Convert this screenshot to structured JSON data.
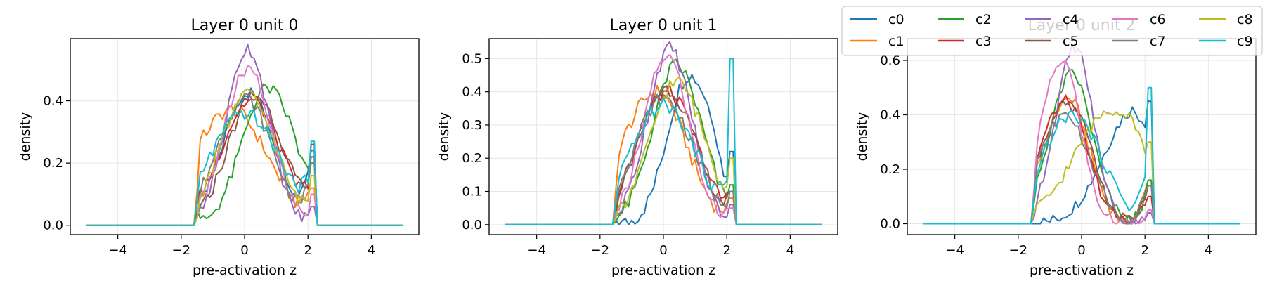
{
  "chart_data": [
    {
      "type": "line",
      "title": "Layer 0 unit 0",
      "xlabel": "pre-activation z",
      "ylabel": "density",
      "xlim": [
        -5.5,
        5.5
      ],
      "ylim": [
        -0.03,
        0.6
      ],
      "xticks": [
        -4,
        -2,
        0,
        2,
        4
      ],
      "yticks": [
        0.0,
        0.2,
        0.4
      ],
      "ytick_labels": [
        "0.0",
        "0.2",
        "0.4"
      ],
      "grid": true,
      "series": [
        {
          "name": "c0",
          "peak": 0.43,
          "x_peak": 0.1,
          "width": 1.05,
          "left": 0.08,
          "right": 0.22,
          "spike": 0.24,
          "skew": 0.1
        },
        {
          "name": "c1",
          "peak": 0.37,
          "x_peak": -0.4,
          "width": 1.5,
          "left": 0.24,
          "right": 0.12,
          "spike": 0.12,
          "skew": -0.1
        },
        {
          "name": "c2",
          "peak": 0.44,
          "x_peak": 0.7,
          "width": 1.1,
          "left": 0.12,
          "right": 0.18,
          "spike": 0.2,
          "skew": 0.2
        },
        {
          "name": "c3",
          "peak": 0.4,
          "x_peak": 0.2,
          "width": 1.2,
          "left": 0.2,
          "right": 0.16,
          "spike": 0.26,
          "skew": 0.0
        },
        {
          "name": "c4",
          "peak": 0.57,
          "x_peak": 0.1,
          "width": 0.85,
          "left": 0.06,
          "right": 0.03,
          "spike": 0.06,
          "skew": 0.0
        },
        {
          "name": "c5",
          "peak": 0.42,
          "x_peak": 0.3,
          "width": 1.1,
          "left": 0.15,
          "right": 0.14,
          "spike": 0.22,
          "skew": 0.1
        },
        {
          "name": "c6",
          "peak": 0.5,
          "x_peak": 0.1,
          "width": 0.95,
          "left": 0.09,
          "right": 0.05,
          "spike": 0.1,
          "skew": 0.0
        },
        {
          "name": "c7",
          "peak": 0.41,
          "x_peak": 0.0,
          "width": 1.1,
          "left": 0.16,
          "right": 0.15,
          "spike": 0.2,
          "skew": 0.0
        },
        {
          "name": "c8",
          "peak": 0.42,
          "x_peak": 0.1,
          "width": 1.1,
          "left": 0.12,
          "right": 0.1,
          "spike": 0.16,
          "skew": 0.0
        },
        {
          "name": "c9",
          "peak": 0.36,
          "x_peak": 0.0,
          "width": 1.4,
          "left": 0.2,
          "right": 0.18,
          "spike": 0.27,
          "skew": 0.0
        }
      ]
    },
    {
      "type": "line",
      "title": "Layer 0 unit 1",
      "xlabel": "pre-activation z",
      "ylabel": "density",
      "xlim": [
        -5.5,
        5.5
      ],
      "ylim": [
        -0.03,
        0.56
      ],
      "xticks": [
        -4,
        -2,
        0,
        2,
        4
      ],
      "yticks": [
        0.0,
        0.1,
        0.2,
        0.3,
        0.4,
        0.5
      ],
      "ytick_labels": [
        "0.0",
        "0.1",
        "0.2",
        "0.3",
        "0.4",
        "0.5"
      ],
      "grid": true,
      "series": [
        {
          "name": "c0",
          "peak": 0.45,
          "x_peak": 0.8,
          "width": 1.0,
          "left": 0.04,
          "right": 0.12,
          "spike": 0.22,
          "skew": 0.3
        },
        {
          "name": "c1",
          "peak": 0.4,
          "x_peak": -0.2,
          "width": 1.3,
          "left": 0.2,
          "right": 0.06,
          "spike": 0.08,
          "skew": -0.2
        },
        {
          "name": "c2",
          "peak": 0.48,
          "x_peak": 0.4,
          "width": 1.0,
          "left": 0.08,
          "right": 0.1,
          "spike": 0.12,
          "skew": 0.1
        },
        {
          "name": "c3",
          "peak": 0.4,
          "x_peak": 0.1,
          "width": 1.2,
          "left": 0.14,
          "right": 0.09,
          "spike": 0.1,
          "skew": 0.0
        },
        {
          "name": "c4",
          "peak": 0.53,
          "x_peak": 0.2,
          "width": 0.9,
          "left": 0.06,
          "right": 0.04,
          "spike": 0.06,
          "skew": 0.0
        },
        {
          "name": "c5",
          "peak": 0.41,
          "x_peak": 0.1,
          "width": 1.15,
          "left": 0.12,
          "right": 0.08,
          "spike": 0.1,
          "skew": 0.0
        },
        {
          "name": "c6",
          "peak": 0.51,
          "x_peak": 0.1,
          "width": 0.9,
          "left": 0.07,
          "right": 0.04,
          "spike": 0.05,
          "skew": 0.0
        },
        {
          "name": "c7",
          "peak": 0.38,
          "x_peak": 0.0,
          "width": 1.2,
          "left": 0.1,
          "right": 0.08,
          "spike": 0.1,
          "skew": 0.0
        },
        {
          "name": "c8",
          "peak": 0.43,
          "x_peak": 0.4,
          "width": 1.1,
          "left": 0.08,
          "right": 0.14,
          "spike": 0.2,
          "skew": 0.1
        },
        {
          "name": "c9",
          "peak": 0.36,
          "x_peak": 0.0,
          "width": 1.3,
          "left": 0.1,
          "right": 0.16,
          "spike": 0.5,
          "skew": 0.0
        }
      ]
    },
    {
      "type": "line",
      "title": "Layer 0 unit 2",
      "xlabel": "pre-activation z",
      "ylabel": "density",
      "xlim": [
        -5.5,
        5.5
      ],
      "ylim": [
        -0.04,
        0.68
      ],
      "xticks": [
        -4,
        -2,
        0,
        2,
        4
      ],
      "yticks": [
        0.0,
        0.2,
        0.4,
        0.6
      ],
      "ytick_labels": [
        "0.0",
        "0.2",
        "0.4",
        "0.6"
      ],
      "grid": true,
      "series": [
        {
          "name": "c0",
          "peak": 0.42,
          "x_peak": 1.7,
          "width": 1.8,
          "left": 0.05,
          "right": 0.36,
          "spike": 0.45,
          "skew": 0.6
        },
        {
          "name": "c1",
          "peak": 0.46,
          "x_peak": -0.4,
          "width": 0.9,
          "left": 0.2,
          "right": 0.14,
          "spike": 0.16,
          "skew": -0.2
        },
        {
          "name": "c2",
          "peak": 0.55,
          "x_peak": -0.3,
          "width": 0.85,
          "left": 0.16,
          "right": 0.12,
          "spike": 0.16,
          "skew": -0.1
        },
        {
          "name": "c3",
          "peak": 0.45,
          "x_peak": -0.5,
          "width": 0.95,
          "left": 0.24,
          "right": 0.1,
          "spike": 0.1,
          "skew": -0.2
        },
        {
          "name": "c4",
          "peak": 0.65,
          "x_peak": -0.2,
          "width": 0.75,
          "left": 0.1,
          "right": 0.04,
          "spike": 0.04,
          "skew": -0.1
        },
        {
          "name": "c5",
          "peak": 0.46,
          "x_peak": -0.4,
          "width": 0.95,
          "left": 0.2,
          "right": 0.13,
          "spike": 0.14,
          "skew": -0.2
        },
        {
          "name": "c6",
          "peak": 0.6,
          "x_peak": -0.6,
          "width": 0.8,
          "left": 0.14,
          "right": 0.05,
          "spike": 0.05,
          "skew": -0.2
        },
        {
          "name": "c7",
          "peak": 0.4,
          "x_peak": -0.5,
          "width": 1.0,
          "left": 0.18,
          "right": 0.14,
          "spike": 0.14,
          "skew": -0.1
        },
        {
          "name": "c8",
          "peak": 0.42,
          "x_peak": 1.0,
          "width": 1.9,
          "left": 0.06,
          "right": 0.25,
          "spike": 0.3,
          "skew": 0.4
        },
        {
          "name": "c9",
          "peak": 0.4,
          "x_peak": -0.3,
          "width": 1.2,
          "left": 0.16,
          "right": 0.22,
          "spike": 0.5,
          "skew": 0.0
        }
      ]
    }
  ],
  "legend": {
    "placement": "top-right",
    "columns": 5,
    "entries": [
      "c0",
      "c1",
      "c2",
      "c3",
      "c4",
      "c5",
      "c6",
      "c7",
      "c8",
      "c9"
    ],
    "colors": [
      "#1f77b4",
      "#ff7f0e",
      "#2ca02c",
      "#d62728",
      "#9467bd",
      "#8c564b",
      "#e377c2",
      "#7f7f7f",
      "#bcbd22",
      "#17becf"
    ]
  }
}
